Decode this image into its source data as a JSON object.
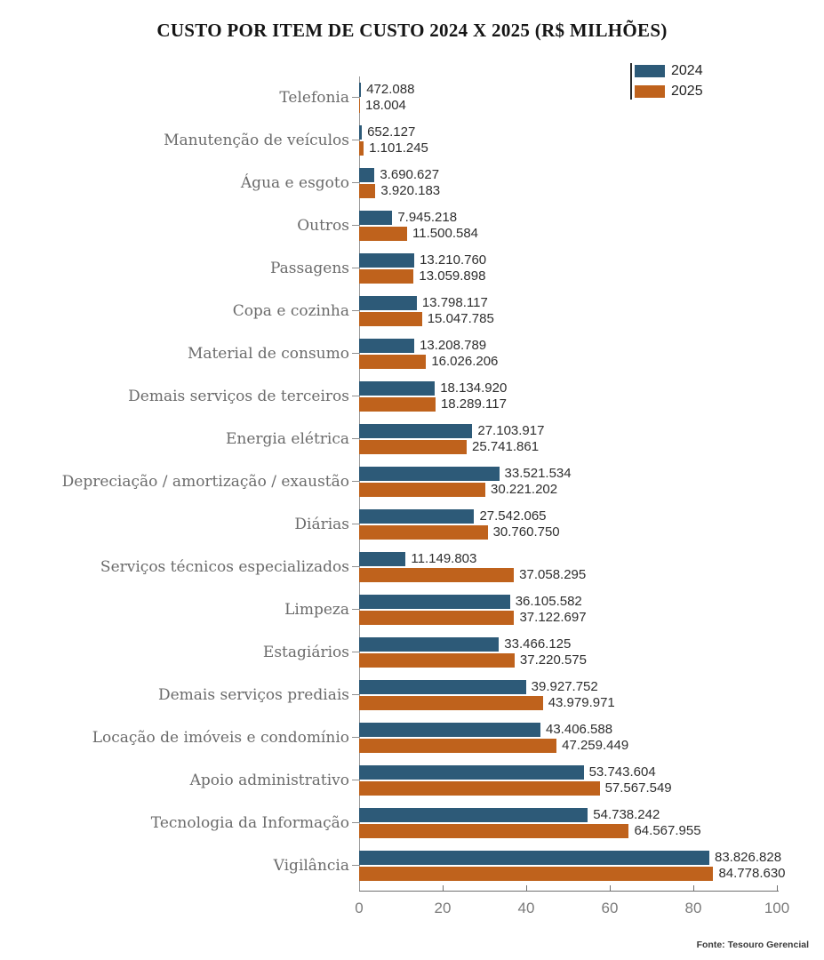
{
  "title": "CUSTO POR ITEM DE CUSTO 2024 X 2025 (R$ MILHÕES)",
  "source": "Fonte: Tesouro Gerencial",
  "chart_data": {
    "type": "bar",
    "orientation": "horizontal",
    "title": "CUSTO POR ITEM DE CUSTO 2024 X 2025 (R$ MILHÕES)",
    "unit": "R$ milhões",
    "xlim": [
      0,
      100
    ],
    "xticks": [
      0,
      20,
      40,
      60,
      80,
      100
    ],
    "grid": false,
    "legend_position": "top-right",
    "source": "Fonte: Tesouro Gerencial",
    "categories": [
      "Telefonia",
      "Manutenção de veículos",
      "Água e esgoto",
      "Outros",
      "Passagens",
      "Copa e cozinha",
      "Material de consumo",
      "Demais serviços de terceiros",
      "Energia elétrica",
      "Depreciação / amortização / exaustão",
      "Diárias",
      "Serviços técnicos especializados",
      "Limpeza",
      "Estagiários",
      "Demais serviços prediais",
      "Locação de imóveis e condomínio",
      "Apoio administrativo",
      "Tecnologia da Informação",
      "Vigilância"
    ],
    "series": [
      {
        "name": "2024",
        "color": "#2D5A78",
        "values": [
          0.472088,
          0.652127,
          3.690627,
          7.945218,
          13.21076,
          13.798117,
          13.208789,
          18.13492,
          27.103917,
          33.521534,
          27.542065,
          11.149803,
          36.105582,
          33.466125,
          39.927752,
          43.406588,
          53.743604,
          54.738242,
          83.826828
        ],
        "labels": [
          "472.088",
          "652.127",
          "3.690.627",
          "7.945.218",
          "13.210.760",
          "13.798.117",
          "13.208.789",
          "18.134.920",
          "27.103.917",
          "33.521.534",
          "27.542.065",
          "11.149.803",
          "36.105.582",
          "33.466.125",
          "39.927.752",
          "43.406.588",
          "53.743.604",
          "54.738.242",
          "83.826.828"
        ]
      },
      {
        "name": "2025",
        "color": "#BF621C",
        "values": [
          0.018004,
          1.101245,
          3.920183,
          11.500584,
          13.059898,
          15.047785,
          16.026206,
          18.289117,
          25.741861,
          30.221202,
          30.76075,
          37.058295,
          37.122697,
          37.220575,
          43.979971,
          47.259449,
          57.567549,
          64.567955,
          84.77863
        ],
        "labels": [
          "18.004",
          "1.101.245",
          "3.920.183",
          "11.500.584",
          "13.059.898",
          "15.047.785",
          "16.026.206",
          "18.289.117",
          "25.741.861",
          "30.221.202",
          "30.760.750",
          "37.058.295",
          "37.122.697",
          "37.220.575",
          "43.979.971",
          "47.259.449",
          "57.567.549",
          "64.567.955",
          "84.778.630"
        ]
      }
    ]
  }
}
